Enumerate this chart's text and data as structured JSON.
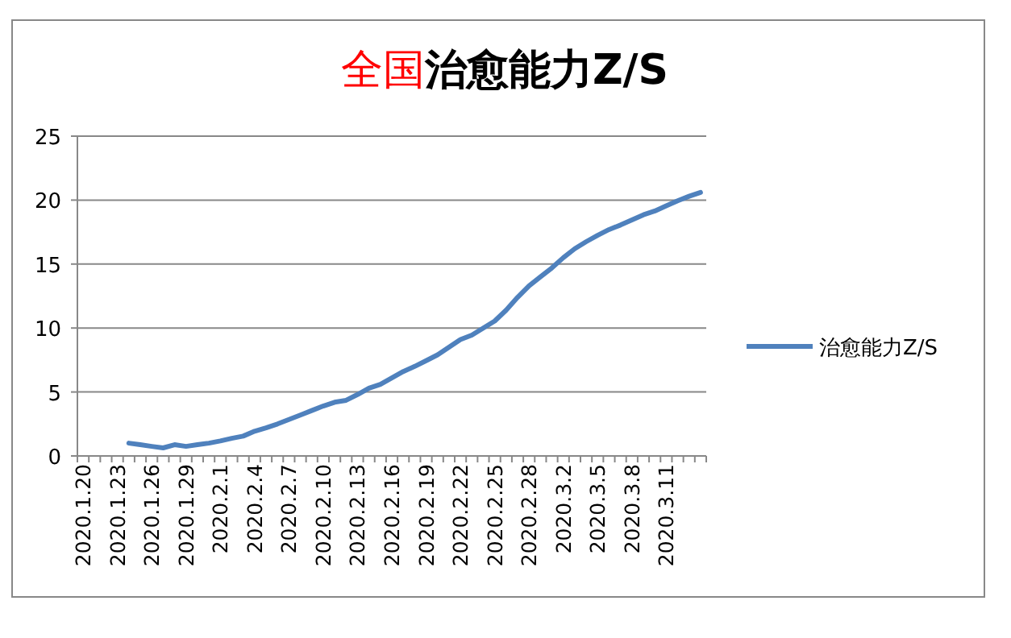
{
  "chart_data": {
    "type": "line",
    "title": "全国治愈能力Z/S",
    "categories": [
      "2020.1.20",
      null,
      null,
      "2020.1.23",
      null,
      null,
      "2020.1.26",
      null,
      null,
      "2020.1.29",
      null,
      null,
      "2020.2.1",
      null,
      null,
      "2020.2.4",
      null,
      null,
      "2020.2.7",
      null,
      null,
      "2020.2.10",
      null,
      null,
      "2020.2.13",
      null,
      null,
      "2020.2.16",
      null,
      null,
      "2020.2.19",
      null,
      null,
      "2020.2.22",
      null,
      null,
      "2020.2.25",
      null,
      null,
      "2020.2.28",
      null,
      null,
      "2020.3.2",
      null,
      null,
      "2020.3.5",
      null,
      null,
      "2020.3.8",
      null,
      null,
      "2020.3.11",
      null,
      null,
      null
    ],
    "series": [
      {
        "name": "治愈能力Z/S",
        "color": "#4f81bd",
        "values": [
          null,
          null,
          null,
          null,
          1.0,
          0.88,
          0.75,
          0.63,
          0.88,
          0.75,
          0.88,
          1.0,
          1.17,
          1.38,
          1.55,
          1.93,
          2.2,
          2.5,
          2.85,
          3.2,
          3.55,
          3.9,
          4.2,
          4.35,
          4.8,
          5.3,
          5.6,
          6.1,
          6.6,
          7.0,
          7.45,
          7.9,
          8.5,
          9.1,
          9.45,
          10.0,
          10.55,
          11.4,
          12.4,
          13.3,
          14.0,
          14.7,
          15.5,
          16.2,
          16.75,
          17.25,
          17.7,
          18.05,
          18.45,
          18.85,
          19.15,
          19.55,
          19.95,
          20.3,
          20.6
        ]
      }
    ],
    "ylim": [
      0,
      25
    ],
    "yticks": [
      0,
      5,
      10,
      15,
      20,
      25
    ],
    "grid": "y",
    "legend": "right",
    "marker": "none",
    "line_style": "solid"
  }
}
